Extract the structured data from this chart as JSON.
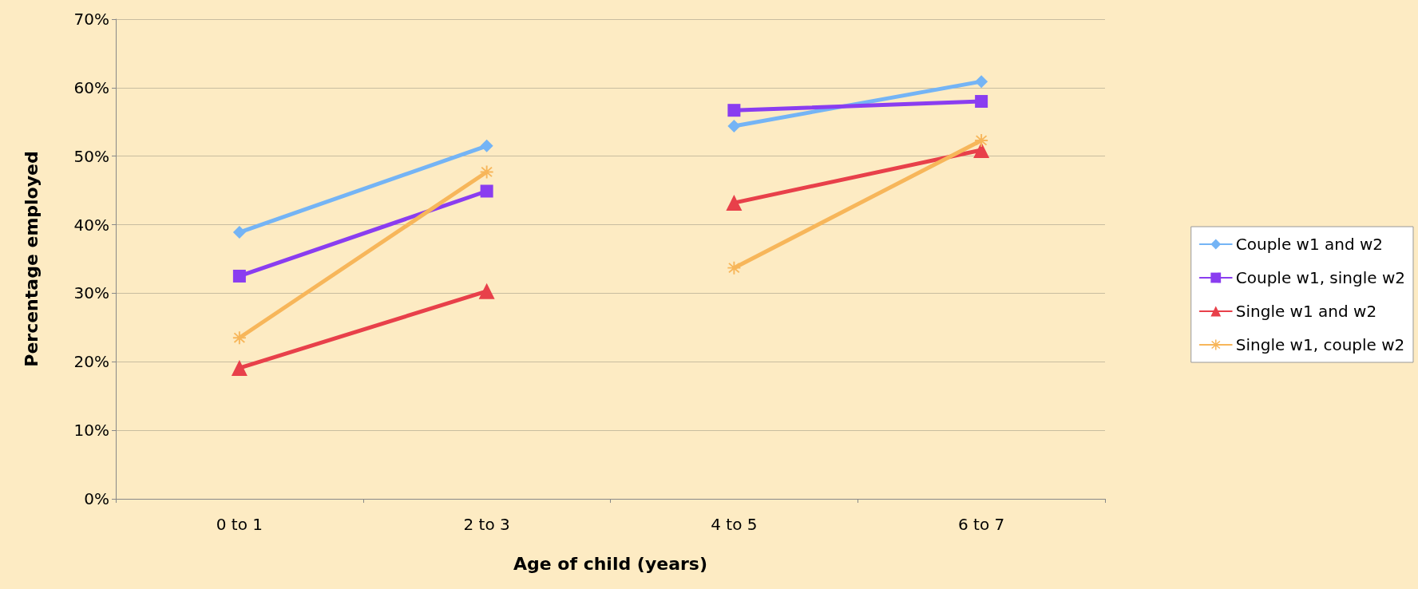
{
  "chart_data": {
    "type": "line",
    "xlabel": "Age of child (years)",
    "ylabel": "Percentage employed",
    "categories": [
      "0 to 1",
      "2 to 3",
      "4 to 5",
      "6 to 7"
    ],
    "series": [
      {
        "name": "Couple w1 and w2",
        "color": "#74b4f5",
        "marker": "diamond",
        "values": [
          38.9,
          51.5,
          null,
          null
        ]
      },
      {
        "name": "Couple w1, single w2",
        "color": "#8a3df0",
        "marker": "square",
        "values": [
          32.5,
          44.9,
          null,
          null
        ]
      },
      {
        "name": "Single w1 and w2",
        "color": "#e8404a",
        "marker": "triangle",
        "values": [
          19.1,
          30.3,
          null,
          null
        ]
      },
      {
        "name": "Single w1, couple w2",
        "color": "#f7b65a",
        "marker": "star",
        "values": [
          23.5,
          47.7,
          null,
          null
        ]
      },
      {
        "color": "#74b4f5",
        "marker": "diamond",
        "values": [
          null,
          null,
          54.4,
          60.9
        ]
      },
      {
        "color": "#8a3df0",
        "marker": "square",
        "values": [
          null,
          null,
          56.7,
          58.0
        ]
      },
      {
        "color": "#e8404a",
        "marker": "triangle",
        "values": [
          null,
          null,
          43.2,
          50.9
        ]
      },
      {
        "color": "#f7b65a",
        "marker": "star",
        "values": [
          null,
          null,
          33.7,
          52.3
        ]
      }
    ],
    "ylim": [
      0,
      70
    ],
    "yticks": [
      {
        "value": 0,
        "label": "0%"
      },
      {
        "value": 10,
        "label": "10%"
      },
      {
        "value": 20,
        "label": "20%"
      },
      {
        "value": 30,
        "label": "30%"
      },
      {
        "value": 40,
        "label": "40%"
      },
      {
        "value": 50,
        "label": "50%"
      },
      {
        "value": 60,
        "label": "60%"
      },
      {
        "value": 70,
        "label": "70%"
      }
    ],
    "grid": "y",
    "legend": "right",
    "line_style": "solid"
  }
}
